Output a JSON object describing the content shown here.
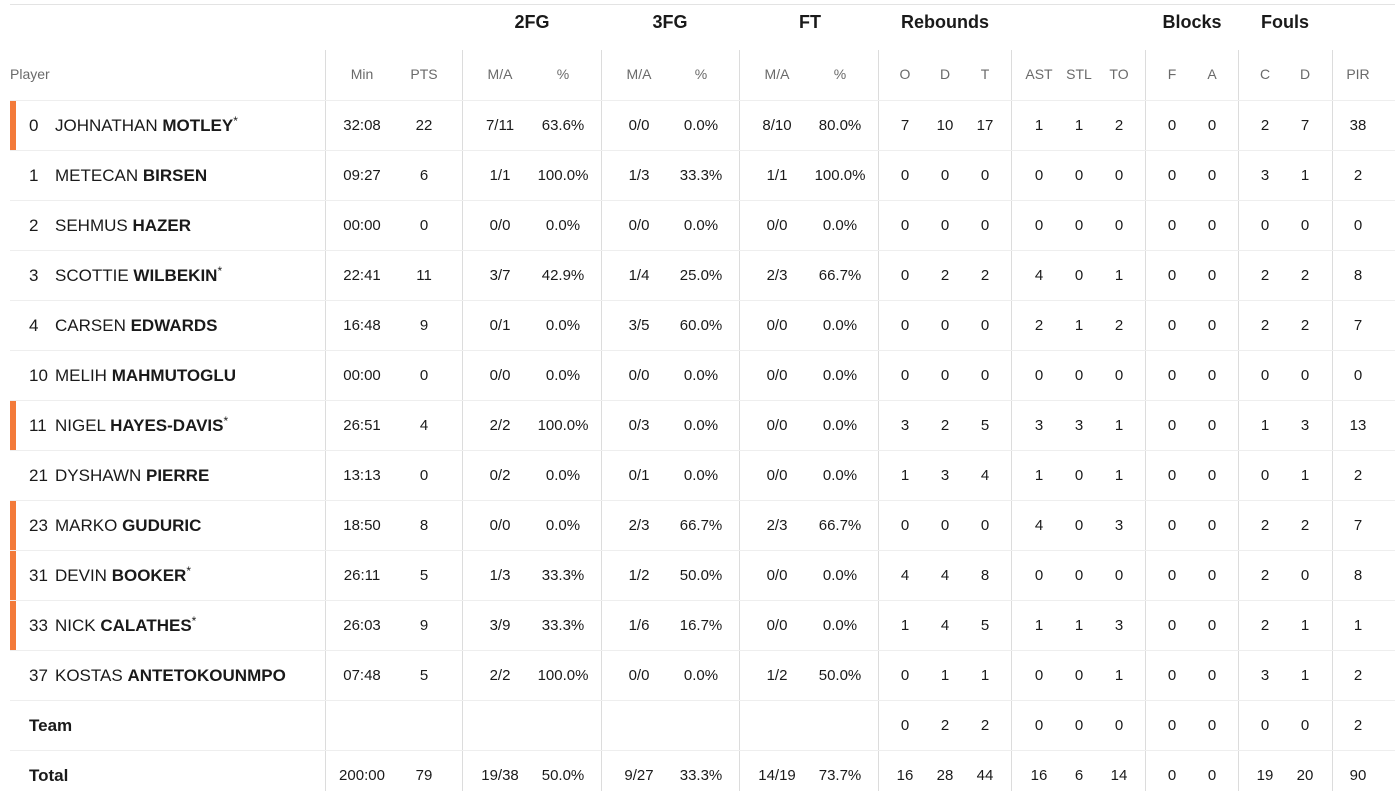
{
  "groups": [
    {
      "key": "2fg",
      "label": "2FG"
    },
    {
      "key": "3fg",
      "label": "3FG"
    },
    {
      "key": "ft",
      "label": "FT"
    },
    {
      "key": "reb",
      "label": "Rebounds"
    },
    {
      "key": "blk",
      "label": "Blocks"
    },
    {
      "key": "fouls",
      "label": "Fouls"
    }
  ],
  "player_header": "Player",
  "columns": [
    {
      "key": "min",
      "label": "Min"
    },
    {
      "key": "pts",
      "label": "PTS"
    },
    {
      "key": "fg2_ma",
      "label": "M/A"
    },
    {
      "key": "fg2_pct",
      "label": "%"
    },
    {
      "key": "fg3_ma",
      "label": "M/A"
    },
    {
      "key": "fg3_pct",
      "label": "%"
    },
    {
      "key": "ft_ma",
      "label": "M/A"
    },
    {
      "key": "ft_pct",
      "label": "%"
    },
    {
      "key": "reb_o",
      "label": "O"
    },
    {
      "key": "reb_d",
      "label": "D"
    },
    {
      "key": "reb_t",
      "label": "T"
    },
    {
      "key": "ast",
      "label": "AST"
    },
    {
      "key": "stl",
      "label": "STL"
    },
    {
      "key": "to",
      "label": "TO"
    },
    {
      "key": "blk_f",
      "label": "F"
    },
    {
      "key": "blk_a",
      "label": "A"
    },
    {
      "key": "foul_c",
      "label": "C"
    },
    {
      "key": "foul_d",
      "label": "D"
    },
    {
      "key": "pir",
      "label": "PIR"
    }
  ],
  "starter_color": "#f37a3a",
  "rows": [
    {
      "num": "0",
      "first": "JOHNATHAN",
      "last": "MOTLEY",
      "star": "*",
      "starter": true,
      "stats": [
        "32:08",
        "22",
        "7/11",
        "63.6%",
        "0/0",
        "0.0%",
        "8/10",
        "80.0%",
        "7",
        "10",
        "17",
        "1",
        "1",
        "2",
        "0",
        "0",
        "2",
        "7",
        "38"
      ]
    },
    {
      "num": "1",
      "first": "METECAN",
      "last": "BIRSEN",
      "star": "",
      "starter": false,
      "stats": [
        "09:27",
        "6",
        "1/1",
        "100.0%",
        "1/3",
        "33.3%",
        "1/1",
        "100.0%",
        "0",
        "0",
        "0",
        "0",
        "0",
        "0",
        "0",
        "0",
        "3",
        "1",
        "2"
      ]
    },
    {
      "num": "2",
      "first": "SEHMUS",
      "last": "HAZER",
      "star": "",
      "starter": false,
      "stats": [
        "00:00",
        "0",
        "0/0",
        "0.0%",
        "0/0",
        "0.0%",
        "0/0",
        "0.0%",
        "0",
        "0",
        "0",
        "0",
        "0",
        "0",
        "0",
        "0",
        "0",
        "0",
        "0"
      ]
    },
    {
      "num": "3",
      "first": "SCOTTIE",
      "last": "WILBEKIN",
      "star": "*",
      "starter": false,
      "stats": [
        "22:41",
        "11",
        "3/7",
        "42.9%",
        "1/4",
        "25.0%",
        "2/3",
        "66.7%",
        "0",
        "2",
        "2",
        "4",
        "0",
        "1",
        "0",
        "0",
        "2",
        "2",
        "8"
      ]
    },
    {
      "num": "4",
      "first": "CARSEN",
      "last": "EDWARDS",
      "star": "",
      "starter": false,
      "stats": [
        "16:48",
        "9",
        "0/1",
        "0.0%",
        "3/5",
        "60.0%",
        "0/0",
        "0.0%",
        "0",
        "0",
        "0",
        "2",
        "1",
        "2",
        "0",
        "0",
        "2",
        "2",
        "7"
      ]
    },
    {
      "num": "10",
      "first": "MELIH",
      "last": "MAHMUTOGLU",
      "star": "",
      "starter": false,
      "stats": [
        "00:00",
        "0",
        "0/0",
        "0.0%",
        "0/0",
        "0.0%",
        "0/0",
        "0.0%",
        "0",
        "0",
        "0",
        "0",
        "0",
        "0",
        "0",
        "0",
        "0",
        "0",
        "0"
      ]
    },
    {
      "num": "11",
      "first": "NIGEL",
      "last": "HAYES-DAVIS",
      "star": "*",
      "starter": true,
      "stats": [
        "26:51",
        "4",
        "2/2",
        "100.0%",
        "0/3",
        "0.0%",
        "0/0",
        "0.0%",
        "3",
        "2",
        "5",
        "3",
        "3",
        "1",
        "0",
        "0",
        "1",
        "3",
        "13"
      ]
    },
    {
      "num": "21",
      "first": "DYSHAWN",
      "last": "PIERRE",
      "star": "",
      "starter": false,
      "stats": [
        "13:13",
        "0",
        "0/2",
        "0.0%",
        "0/1",
        "0.0%",
        "0/0",
        "0.0%",
        "1",
        "3",
        "4",
        "1",
        "0",
        "1",
        "0",
        "0",
        "0",
        "1",
        "2"
      ]
    },
    {
      "num": "23",
      "first": "MARKO",
      "last": "GUDURIC",
      "star": "",
      "starter": true,
      "stats": [
        "18:50",
        "8",
        "0/0",
        "0.0%",
        "2/3",
        "66.7%",
        "2/3",
        "66.7%",
        "0",
        "0",
        "0",
        "4",
        "0",
        "3",
        "0",
        "0",
        "2",
        "2",
        "7"
      ]
    },
    {
      "num": "31",
      "first": "DEVIN",
      "last": "BOOKER",
      "star": "*",
      "starter": true,
      "stats": [
        "26:11",
        "5",
        "1/3",
        "33.3%",
        "1/2",
        "50.0%",
        "0/0",
        "0.0%",
        "4",
        "4",
        "8",
        "0",
        "0",
        "0",
        "0",
        "0",
        "2",
        "0",
        "8"
      ]
    },
    {
      "num": "33",
      "first": "NICK",
      "last": "CALATHES",
      "star": "*",
      "starter": true,
      "stats": [
        "26:03",
        "9",
        "3/9",
        "33.3%",
        "1/6",
        "16.7%",
        "0/0",
        "0.0%",
        "1",
        "4",
        "5",
        "1",
        "1",
        "3",
        "0",
        "0",
        "2",
        "1",
        "1"
      ]
    },
    {
      "num": "37",
      "first": "KOSTAS",
      "last": "ANTETOKOUNMPO",
      "star": "",
      "starter": false,
      "stats": [
        "07:48",
        "5",
        "2/2",
        "100.0%",
        "0/0",
        "0.0%",
        "1/2",
        "50.0%",
        "0",
        "1",
        "1",
        "0",
        "0",
        "1",
        "0",
        "0",
        "3",
        "1",
        "2"
      ]
    }
  ],
  "team_row": {
    "label": "Team",
    "stats": [
      "",
      "",
      "",
      "",
      "",
      "",
      "",
      "",
      "0",
      "2",
      "2",
      "0",
      "0",
      "0",
      "0",
      "0",
      "0",
      "0",
      "2"
    ]
  },
  "total_row": {
    "label": "Total",
    "stats": [
      "200:00",
      "79",
      "19/38",
      "50.0%",
      "9/27",
      "33.3%",
      "14/19",
      "73.7%",
      "16",
      "28",
      "44",
      "16",
      "6",
      "14",
      "0",
      "0",
      "19",
      "20",
      "90"
    ]
  }
}
